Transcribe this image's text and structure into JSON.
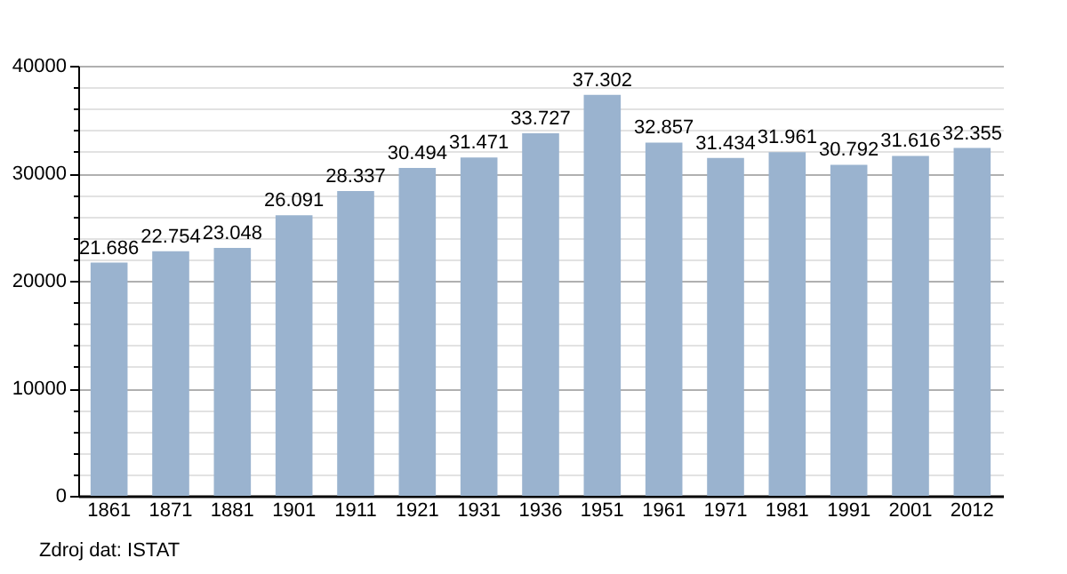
{
  "chart_data": {
    "type": "bar",
    "categories": [
      "1861",
      "1871",
      "1881",
      "1901",
      "1911",
      "1921",
      "1931",
      "1936",
      "1951",
      "1961",
      "1971",
      "1981",
      "1991",
      "2001",
      "2012"
    ],
    "values": [
      21686,
      22754,
      23048,
      26091,
      28337,
      30494,
      31471,
      33727,
      37302,
      32857,
      31434,
      31961,
      30792,
      31616,
      32355
    ],
    "value_labels": [
      "21.686",
      "22.754",
      "23.048",
      "26.091",
      "28.337",
      "30.494",
      "31.471",
      "33.727",
      "37.302",
      "32.857",
      "31.434",
      "31.961",
      "30.792",
      "31.616",
      "32.355"
    ],
    "color": "#9ab3cf",
    "ylim": [
      0,
      40000
    ],
    "yticks": [
      0,
      {
        "value": 2000,
        "label": null
      },
      {
        "value": 4000,
        "label": null
      },
      {
        "value": 6000,
        "label": null
      },
      {
        "value": 8000,
        "label": null
      },
      10000,
      {
        "value": 12000,
        "label": null
      },
      {
        "value": 14000,
        "label": null
      },
      {
        "value": 16000,
        "label": null
      },
      {
        "value": 18000,
        "label": null
      },
      20000,
      {
        "value": 22000,
        "label": null
      },
      {
        "value": 24000,
        "label": null
      },
      {
        "value": 26000,
        "label": null
      },
      {
        "value": 28000,
        "label": null
      },
      30000,
      {
        "value": 32000,
        "label": null
      },
      {
        "value": 34000,
        "label": null
      },
      {
        "value": 36000,
        "label": null
      },
      {
        "value": 38000,
        "label": null
      },
      40000
    ],
    "grid": "y",
    "annotations": [
      "Zdroj dat: ISTAT"
    ]
  }
}
